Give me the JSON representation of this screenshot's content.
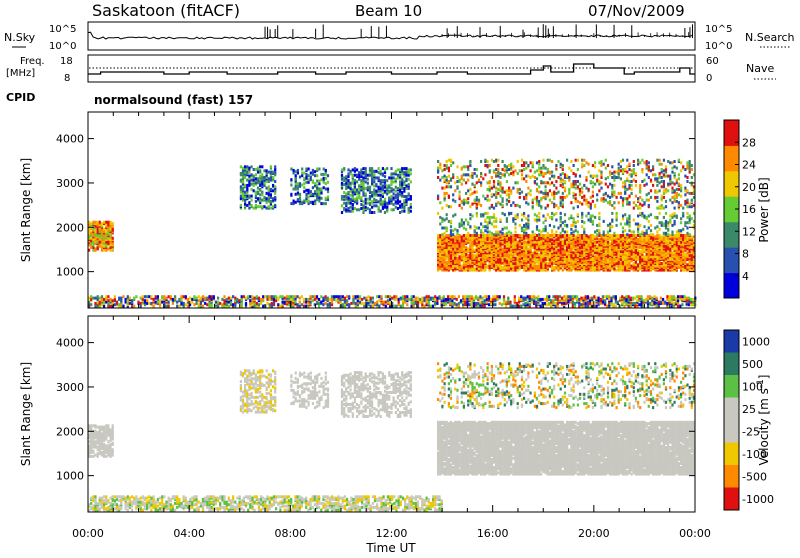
{
  "header": {
    "station": "Saskatoon (fitACF)",
    "beam": "Beam 10",
    "date": "07/Nov/2009"
  },
  "top_panels": {
    "nsky_label": "N.Sky",
    "noise_ticks": [
      "10^5",
      "10^0"
    ],
    "nsearch_label": "N.Search",
    "freq_label": "Freq.",
    "freq_unit": "[MHz]",
    "freq_ticks": [
      "18",
      "8"
    ],
    "nave_label": "Nave",
    "nave_ticks": [
      "60",
      "0"
    ],
    "cpid_label": "CPID",
    "cpid_value": "normalsound (fast) 157"
  },
  "chart_data": [
    {
      "type": "heatmap",
      "name": "power",
      "ylabel": "Slant Range [km]",
      "ylim": [
        180,
        4600
      ],
      "yticks": [
        1000,
        2000,
        3000,
        4000
      ],
      "colorbar_label": "Power [dB]",
      "colorbar_ticks": [
        4,
        8,
        12,
        16,
        20,
        24,
        28
      ],
      "colorbar_range": [
        0,
        32
      ],
      "colors": [
        "#0000dd",
        "#2850b0",
        "#3a8a6a",
        "#66cc33",
        "#f0c800",
        "#ff8a00",
        "#e01010"
      ],
      "regions": [
        {
          "t0": 0.0,
          "t1": 24.0,
          "r0": 190,
          "r1": 420,
          "density": 0.55,
          "cmin": 0,
          "cmax": 6
        },
        {
          "t0": 0.0,
          "t1": 1.0,
          "r0": 1450,
          "r1": 2100,
          "density": 0.7,
          "cmin": 3,
          "cmax": 6
        },
        {
          "t0": 6.0,
          "t1": 7.4,
          "r0": 2400,
          "r1": 3350,
          "density": 0.45,
          "cmin": 0,
          "cmax": 3
        },
        {
          "t0": 8.0,
          "t1": 9.5,
          "r0": 2500,
          "r1": 3300,
          "density": 0.35,
          "cmin": 0,
          "cmax": 3
        },
        {
          "t0": 10.0,
          "t1": 12.8,
          "r0": 2300,
          "r1": 3300,
          "density": 0.4,
          "cmin": 0,
          "cmax": 3
        },
        {
          "t0": 13.8,
          "t1": 24.0,
          "r0": 1000,
          "r1": 1800,
          "density": 0.85,
          "cmin": 4,
          "cmax": 6
        },
        {
          "t0": 13.8,
          "t1": 24.0,
          "r0": 1800,
          "r1": 2300,
          "density": 0.2,
          "cmin": 1,
          "cmax": 4
        },
        {
          "t0": 13.8,
          "t1": 24.0,
          "r0": 2400,
          "r1": 3500,
          "density": 0.2,
          "cmin": 1,
          "cmax": 6
        }
      ]
    },
    {
      "type": "heatmap",
      "name": "velocity",
      "ylabel": "Slant Range [km]",
      "ylim": [
        180,
        4600
      ],
      "yticks": [
        1000,
        2000,
        3000,
        4000
      ],
      "colorbar_label": "Velocity [m s^-1]",
      "colorbar_ticks": [
        "1000",
        "500",
        "100",
        "25",
        "-25",
        "-100",
        "-500",
        "-1000"
      ],
      "colors": [
        "#1a3aa8",
        "#2c7a62",
        "#5cc044",
        "#c8c8c0",
        "#c8c8c0",
        "#f0c800",
        "#ff8a00",
        "#e01010"
      ],
      "regions": [
        {
          "t0": 0.0,
          "t1": 14.0,
          "r0": 190,
          "r1": 500,
          "density": 0.5,
          "cmin": 2,
          "cmax": 5
        },
        {
          "t0": 0.0,
          "t1": 1.0,
          "r0": 1400,
          "r1": 2100,
          "density": 0.6,
          "cmin": 3,
          "cmax": 4
        },
        {
          "t0": 6.0,
          "t1": 7.4,
          "r0": 2400,
          "r1": 3350,
          "density": 0.4,
          "cmin": 3,
          "cmax": 5
        },
        {
          "t0": 8.0,
          "t1": 9.5,
          "r0": 2500,
          "r1": 3300,
          "density": 0.3,
          "cmin": 3,
          "cmax": 4
        },
        {
          "t0": 10.0,
          "t1": 12.8,
          "r0": 2300,
          "r1": 3300,
          "density": 0.35,
          "cmin": 3,
          "cmax": 4
        },
        {
          "t0": 13.8,
          "t1": 24.0,
          "r0": 1000,
          "r1": 2200,
          "density": 0.85,
          "cmin": 3,
          "cmax": 4
        },
        {
          "t0": 13.8,
          "t1": 24.0,
          "r0": 2500,
          "r1": 3500,
          "density": 0.2,
          "cmin": 1,
          "cmax": 6
        }
      ]
    }
  ],
  "x_axis": {
    "label": "Time UT",
    "ticks": [
      "00:00",
      "04:00",
      "08:00",
      "12:00",
      "16:00",
      "20:00",
      "00:00"
    ],
    "range_hours": [
      0,
      24
    ]
  }
}
